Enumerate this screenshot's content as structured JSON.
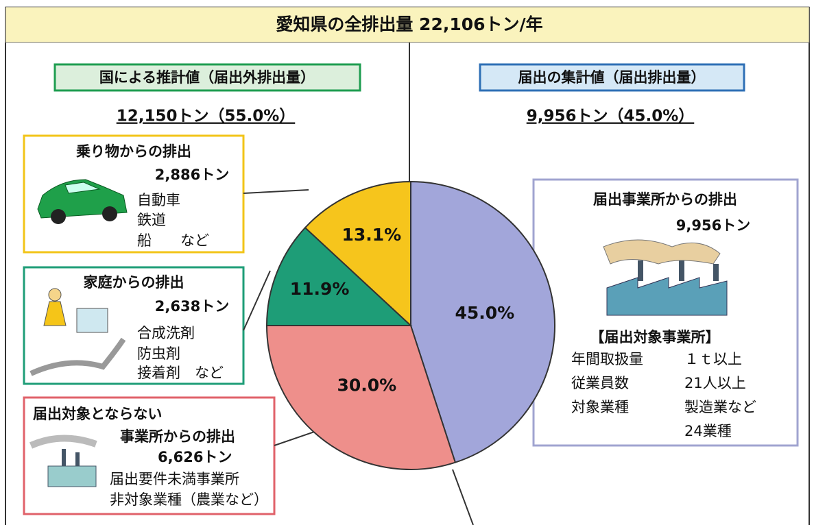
{
  "chart_data": {
    "type": "pie",
    "title": "愛知県の全排出量 22,106トン/年",
    "values": [
      45.0,
      30.0,
      11.9,
      13.1
    ],
    "value_labels": [
      "45.0%",
      "30.0%",
      "11.9%",
      "13.1%"
    ],
    "colors": [
      "#a2a6da",
      "#ee8f8b",
      "#1e9d77",
      "#f6c51c"
    ],
    "start": "top",
    "direction": "clockwise"
  },
  "left_header": {
    "title": "国による推計値（届出外排出量）",
    "amount": "12,150トン（55.0%）"
  },
  "right_header": {
    "title": "届出の集計値（届出排出量）",
    "amount": "9,956トン（45.0%）"
  },
  "boxes": [
    {
      "title": "乗り物からの排出",
      "amount": "2,886トン",
      "items": [
        "自動車",
        "鉄道",
        "船　　など"
      ]
    },
    {
      "title": "家庭からの排出",
      "amount": "2,638トン",
      "items": [
        "合成洗剤",
        "防虫剤",
        "接着剤　など"
      ]
    },
    {
      "title": [
        "届出対象とならない",
        "事業所からの排出"
      ],
      "amount": "6,626トン",
      "items": [
        "届出要件未満事業所",
        "非対象業種（農業など）"
      ]
    },
    {
      "title": "届出事業所からの排出",
      "amount": "9,956トン",
      "subtitle": "【届出対象事業所】",
      "rows": [
        [
          "年間取扱量",
          "１ｔ以上"
        ],
        [
          "従業員数",
          "21人以上"
        ],
        [
          "対象業種",
          "製造業など"
        ],
        [
          null,
          "24業種"
        ]
      ]
    }
  ]
}
